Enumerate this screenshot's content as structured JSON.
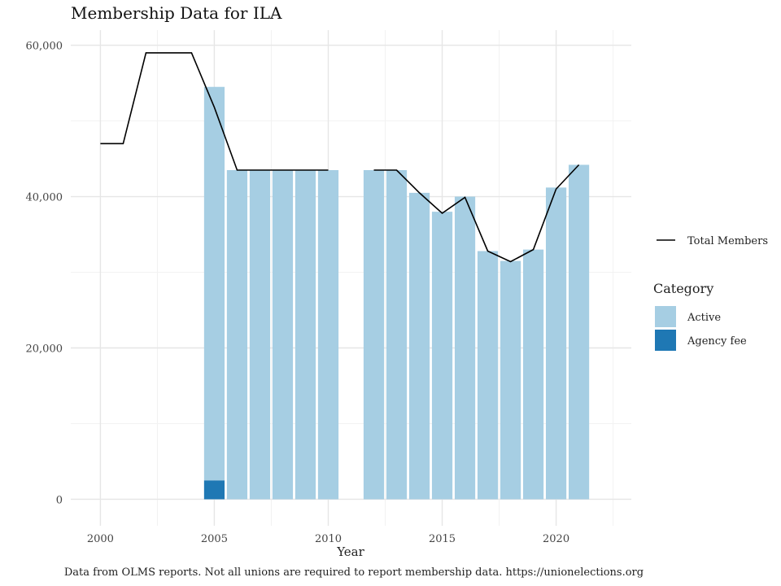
{
  "chart_data": {
    "type": "bar",
    "title": "Membership Data for ILA",
    "xlabel": "Year",
    "ylabel": "",
    "caption": "Data from OLMS reports. Not all unions are required to report membership data. https://unionelections.org",
    "xlim": [
      1998.7,
      2023.3
    ],
    "ylim": [
      -3500,
      62000
    ],
    "x_ticks": [
      2000,
      2005,
      2010,
      2015,
      2020
    ],
    "x_tick_labels": [
      "2000",
      "2005",
      "2010",
      "2015",
      "2020"
    ],
    "y_ticks": [
      0,
      20000,
      40000,
      60000
    ],
    "y_tick_labels": [
      "0",
      "20,000",
      "40,000",
      "60,000"
    ],
    "grid": true,
    "stacked": true,
    "bar_years": [
      2005,
      2006,
      2007,
      2008,
      2009,
      2010,
      2012,
      2013,
      2014,
      2015,
      2016,
      2017,
      2018,
      2019,
      2020,
      2021
    ],
    "series": [
      {
        "name": "Active",
        "color": "#a6cee3",
        "values": [
          52000,
          43500,
          43500,
          43500,
          43500,
          43500,
          43500,
          43500,
          40500,
          38000,
          40000,
          32800,
          31500,
          33000,
          41200,
          44200
        ]
      },
      {
        "name": "Agency fee",
        "color": "#1f78b4",
        "values": [
          2500,
          0,
          0,
          0,
          0,
          0,
          0,
          0,
          0,
          0,
          0,
          0,
          0,
          0,
          0,
          0
        ]
      }
    ],
    "line": {
      "name": "Total Members",
      "color": "#000000",
      "segments": [
        {
          "x": [
            2000,
            2001,
            2002,
            2003,
            2004,
            2005,
            2006,
            2007,
            2008,
            2009,
            2010
          ],
          "y": [
            47000,
            47000,
            59000,
            59000,
            59000,
            51800,
            43500,
            43500,
            43500,
            43500,
            43500
          ]
        },
        {
          "x": [
            2012,
            2013,
            2014,
            2015,
            2016,
            2017,
            2018,
            2019,
            2020,
            2021
          ],
          "y": [
            43500,
            43500,
            40500,
            37800,
            39900,
            32800,
            31400,
            33000,
            41000,
            44200
          ]
        }
      ]
    },
    "legend": {
      "placement": "right",
      "line_label": "Total Members",
      "category_title": "Category",
      "items": [
        {
          "label": "Active",
          "color": "#a6cee3"
        },
        {
          "label": "Agency fee",
          "color": "#1f78b4"
        }
      ]
    },
    "colors": {
      "grid_major": "#e6e6e6",
      "grid_minor": "#f2f2f2"
    }
  }
}
